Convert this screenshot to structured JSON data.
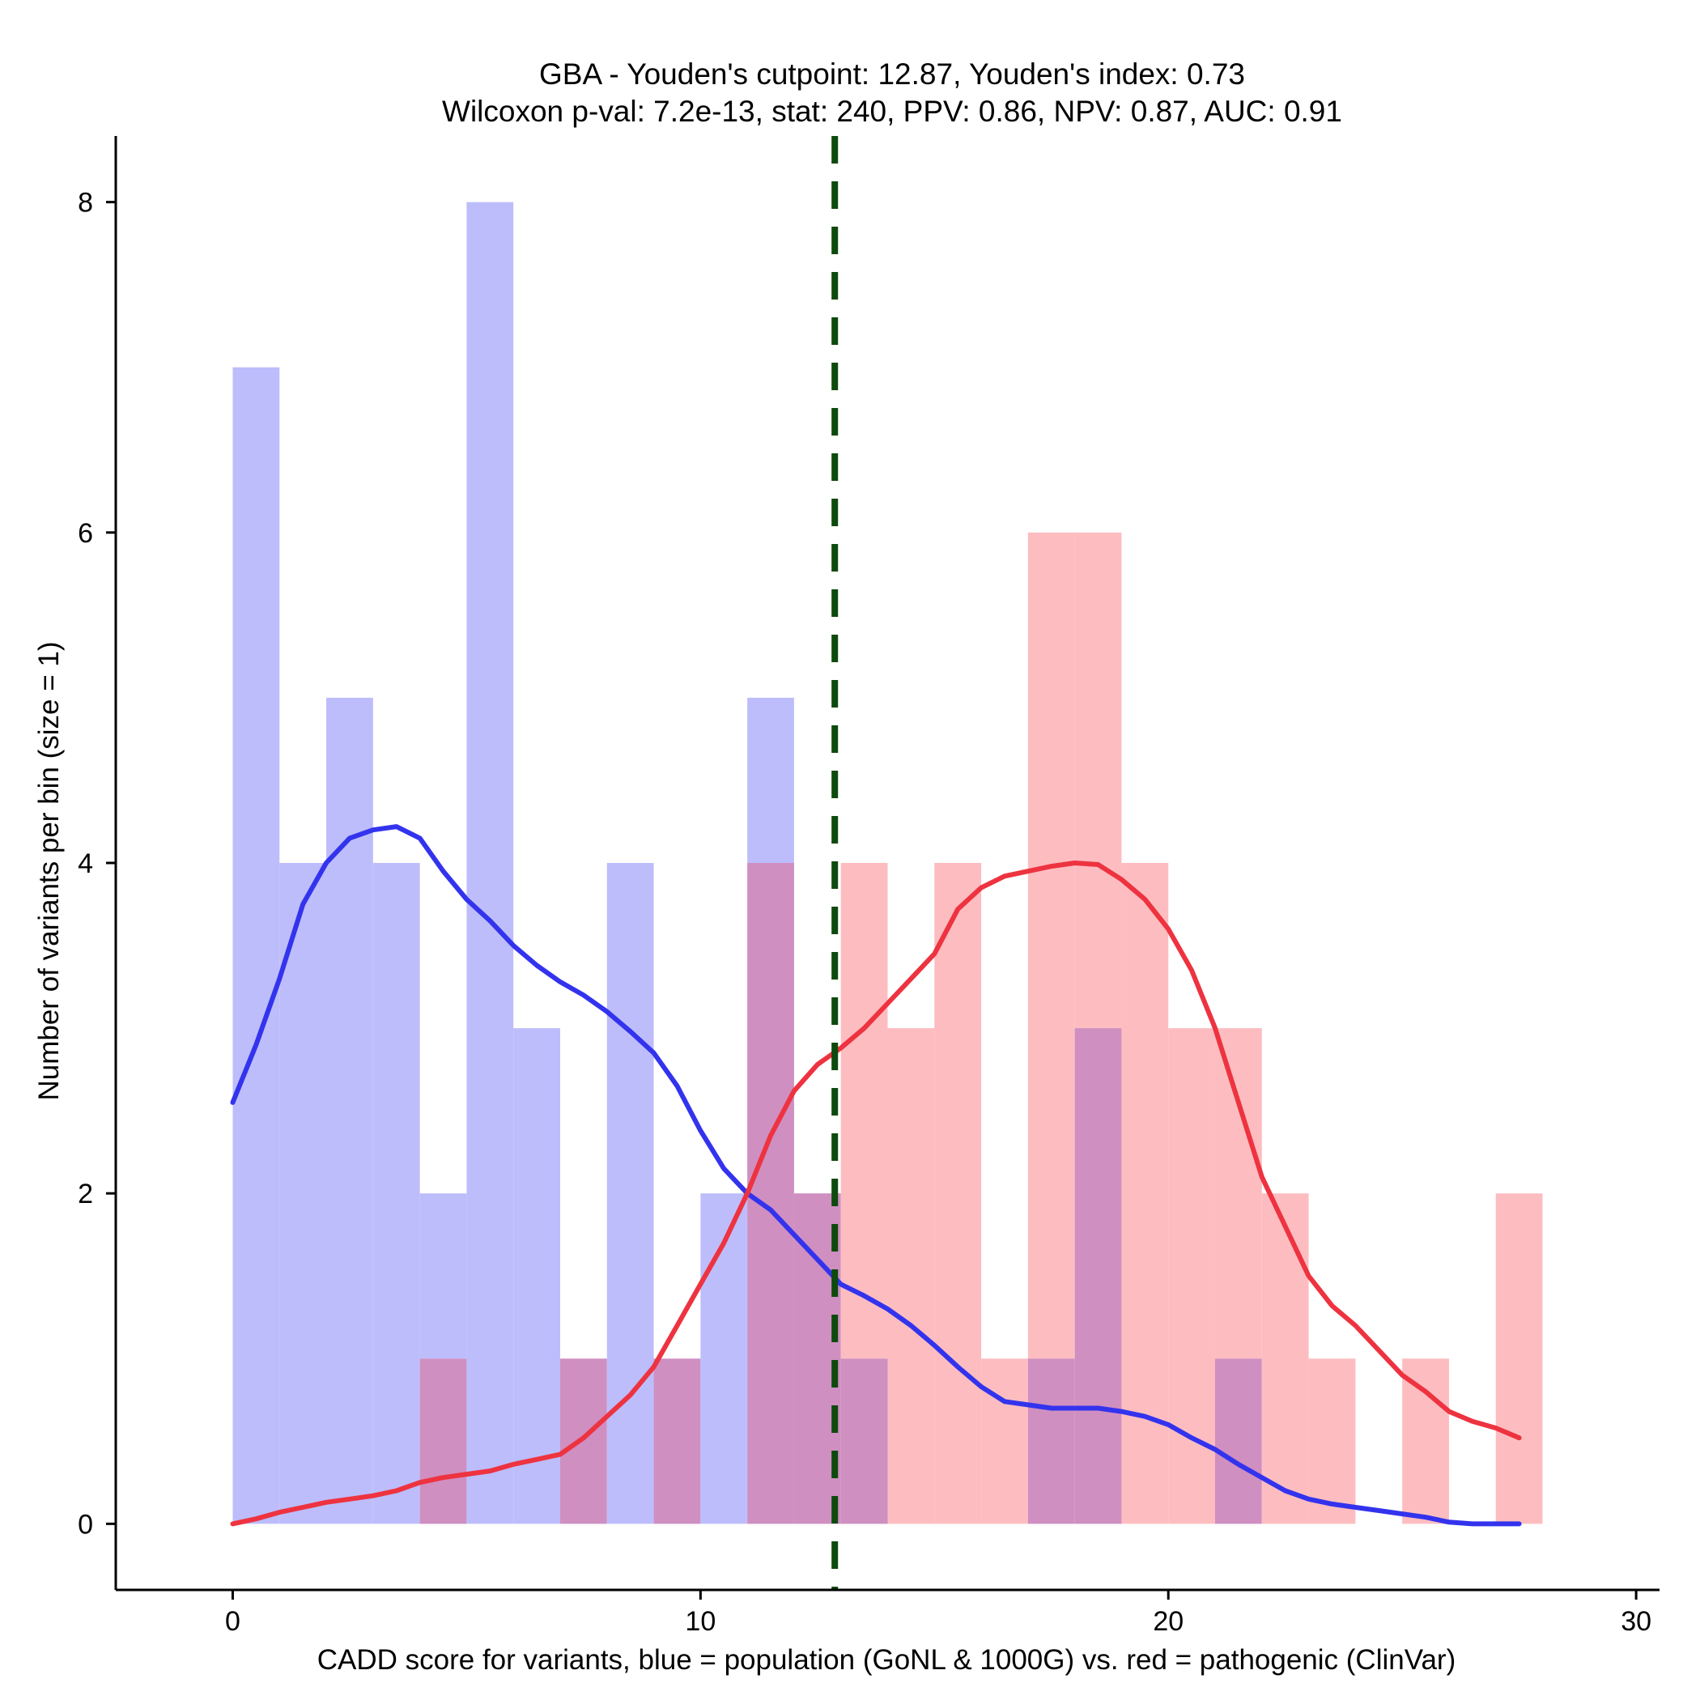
{
  "chart_data": {
    "type": "histogram",
    "title": "GBA - Youden's cutpoint: 12.87, Youden's index: 0.73",
    "subtitle": "Wilcoxon p-val: 7.2e-13, stat: 240, PPV: 0.86, NPV: 0.87, AUC: 0.91",
    "xlabel": "CADD score for variants, blue = population (GoNL & 1000G) vs. red = pathogenic (ClinVar)",
    "ylabel": "Number of variants per bin (size = 1)",
    "xlim": [
      -2.5,
      30.5
    ],
    "ylim": [
      -0.4,
      8.4
    ],
    "x_ticks": [
      0,
      10,
      20,
      30
    ],
    "y_ticks": [
      0,
      2,
      4,
      6,
      8
    ],
    "bin_size": 1,
    "cutpoint": 12.87,
    "colors": {
      "population_bar": "#bdbdfb",
      "pathogenic_bar": "#fdbdc0",
      "overlap_bar": "#cf8fc1",
      "population_line": "#3333ee",
      "pathogenic_line": "#ee3340",
      "cutpoint_line": "#0d4a0d"
    },
    "series": [
      {
        "name": "population (GoNL & 1000G)",
        "bin_edges_start": [
          0,
          1,
          2,
          3,
          4,
          5,
          6,
          7,
          8,
          9,
          10,
          11,
          12,
          13,
          14,
          15,
          16,
          17,
          18,
          19,
          20,
          21,
          22,
          23,
          24,
          25,
          26,
          27
        ],
        "counts": [
          7,
          4,
          5,
          4,
          2,
          8,
          3,
          1,
          4,
          1,
          2,
          5,
          2,
          1,
          0,
          0,
          0,
          1,
          3,
          0,
          0,
          1,
          0,
          0,
          0,
          0,
          0,
          0
        ],
        "density_curve": {
          "x": [
            0,
            0.5,
            1,
            1.5,
            2,
            2.5,
            3,
            3.5,
            4,
            4.5,
            5,
            5.5,
            6,
            6.5,
            7,
            7.5,
            8,
            8.5,
            9,
            9.5,
            10,
            10.5,
            11,
            11.5,
            12,
            12.5,
            13,
            13.5,
            14,
            14.5,
            15,
            15.5,
            16,
            16.5,
            17,
            17.5,
            18,
            18.5,
            19,
            19.5,
            20,
            20.5,
            21,
            21.5,
            22,
            22.5,
            23,
            23.5,
            24,
            24.5,
            25,
            25.5,
            26,
            26.5,
            27,
            27.5
          ],
          "y": [
            2.55,
            2.9,
            3.3,
            3.75,
            4.0,
            4.15,
            4.2,
            4.22,
            4.15,
            3.95,
            3.78,
            3.65,
            3.5,
            3.38,
            3.28,
            3.2,
            3.1,
            2.98,
            2.85,
            2.65,
            2.38,
            2.15,
            2.0,
            1.9,
            1.75,
            1.6,
            1.45,
            1.38,
            1.3,
            1.2,
            1.08,
            0.95,
            0.83,
            0.74,
            0.72,
            0.7,
            0.7,
            0.7,
            0.68,
            0.65,
            0.6,
            0.52,
            0.45,
            0.36,
            0.28,
            0.2,
            0.15,
            0.12,
            0.1,
            0.08,
            0.06,
            0.04,
            0.01,
            0.0,
            0.0,
            0.0
          ]
        }
      },
      {
        "name": "pathogenic (ClinVar)",
        "bin_edges_start": [
          0,
          1,
          2,
          3,
          4,
          5,
          6,
          7,
          8,
          9,
          10,
          11,
          12,
          13,
          14,
          15,
          16,
          17,
          18,
          19,
          20,
          21,
          22,
          23,
          24,
          25,
          26,
          27
        ],
        "counts": [
          0,
          0,
          0,
          0,
          1,
          0,
          0,
          1,
          0,
          1,
          0,
          4,
          2,
          4,
          3,
          4,
          1,
          6,
          6,
          4,
          3,
          3,
          2,
          1,
          0,
          1,
          0,
          2
        ],
        "density_curve": {
          "x": [
            0,
            0.5,
            1,
            1.5,
            2,
            2.5,
            3,
            3.5,
            4,
            4.5,
            5,
            5.5,
            6,
            6.5,
            7,
            7.5,
            8,
            8.5,
            9,
            9.5,
            10,
            10.5,
            11,
            11.5,
            12,
            12.5,
            13,
            13.5,
            14,
            14.5,
            15,
            15.5,
            16,
            16.5,
            17,
            17.5,
            18,
            18.5,
            19,
            19.5,
            20,
            20.5,
            21,
            21.5,
            22,
            22.5,
            23,
            23.5,
            24,
            24.5,
            25,
            25.5,
            26,
            26.5,
            27,
            27.5
          ],
          "y": [
            0.0,
            0.03,
            0.07,
            0.1,
            0.13,
            0.15,
            0.17,
            0.2,
            0.25,
            0.28,
            0.3,
            0.32,
            0.36,
            0.39,
            0.42,
            0.52,
            0.65,
            0.78,
            0.95,
            1.2,
            1.45,
            1.7,
            2.0,
            2.35,
            2.62,
            2.78,
            2.88,
            3.0,
            3.15,
            3.3,
            3.45,
            3.72,
            3.85,
            3.92,
            3.95,
            3.98,
            4.0,
            3.99,
            3.9,
            3.78,
            3.6,
            3.35,
            3.0,
            2.55,
            2.1,
            1.8,
            1.5,
            1.32,
            1.2,
            1.05,
            0.9,
            0.8,
            0.68,
            0.62,
            0.58,
            0.52
          ]
        }
      }
    ]
  }
}
